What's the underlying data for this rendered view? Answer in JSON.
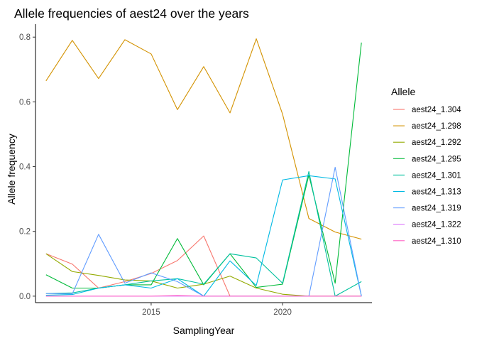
{
  "chart_data": {
    "type": "line",
    "title": "Allele frequencies of aest24 over the years",
    "xlabel": "SamplingYear",
    "ylabel": "Allele frequency",
    "xlim": [
      2010.6,
      2023.4
    ],
    "ylim": [
      -0.02,
      0.84
    ],
    "x_ticks": [
      2015,
      2020
    ],
    "y_ticks": [
      0.0,
      0.2,
      0.4,
      0.6,
      0.8
    ],
    "y_tick_labels": [
      "0.0",
      "0.2",
      "0.4",
      "0.6",
      "0.8"
    ],
    "grid": false,
    "legend": {
      "title": "Allele",
      "position": "right"
    },
    "x": [
      2011,
      2012,
      2013,
      2014,
      2015,
      2016,
      2017,
      2018,
      2019,
      2020,
      2021,
      2022,
      2023
    ],
    "series": [
      {
        "name": "aest24_1.304",
        "color": "#F8766D",
        "values": [
          0.131,
          0.099,
          0.025,
          0.045,
          0.07,
          0.11,
          0.186,
          0.0,
          0.0,
          0.0,
          0.0,
          0.0,
          0.0
        ]
      },
      {
        "name": "aest24_1.298",
        "color": "#D39200",
        "values": [
          0.665,
          0.79,
          0.672,
          0.792,
          0.748,
          0.576,
          0.709,
          0.566,
          0.795,
          0.562,
          0.24,
          0.198,
          0.176
        ]
      },
      {
        "name": "aest24_1.292",
        "color": "#93AA00",
        "values": [
          0.131,
          0.076,
          0.064,
          0.05,
          0.047,
          0.025,
          0.037,
          0.062,
          0.025,
          0.006,
          0.0,
          0.0,
          0.0
        ]
      },
      {
        "name": "aest24_1.295",
        "color": "#00BA38",
        "values": [
          0.066,
          0.025,
          0.025,
          0.035,
          0.035,
          0.178,
          0.035,
          0.131,
          0.027,
          0.037,
          0.374,
          0.04,
          0.783
        ]
      },
      {
        "name": "aest24_1.301",
        "color": "#00C19F",
        "values": [
          0.008,
          0.01,
          0.025,
          0.035,
          0.047,
          0.054,
          0.037,
          0.131,
          0.118,
          0.04,
          0.385,
          0.0,
          0.045
        ]
      },
      {
        "name": "aest24_1.313",
        "color": "#00B9E3",
        "values": [
          0.003,
          0.005,
          0.025,
          0.035,
          0.025,
          0.054,
          0.0,
          0.109,
          0.033,
          0.359,
          0.372,
          0.362,
          0.0
        ]
      },
      {
        "name": "aest24_1.319",
        "color": "#619CFF",
        "values": [
          0.008,
          0.007,
          0.191,
          0.04,
          0.072,
          0.045,
          0.0,
          0.0,
          0.0,
          0.0,
          0.0,
          0.398,
          0.0
        ]
      },
      {
        "name": "aest24_1.322",
        "color": "#DB72FB",
        "values": [
          0.0,
          0.0,
          0.0,
          0.0,
          0.0,
          0.0,
          0.0,
          0.0,
          0.0,
          0.0,
          0.0,
          0.0,
          0.0
        ]
      },
      {
        "name": "aest24_1.310",
        "color": "#FF61C3",
        "values": [
          0.0,
          0.0,
          0.0,
          0.0,
          0.0,
          0.002,
          0.0,
          0.0,
          0.0,
          0.0,
          0.0,
          0.0,
          0.0
        ]
      }
    ]
  }
}
